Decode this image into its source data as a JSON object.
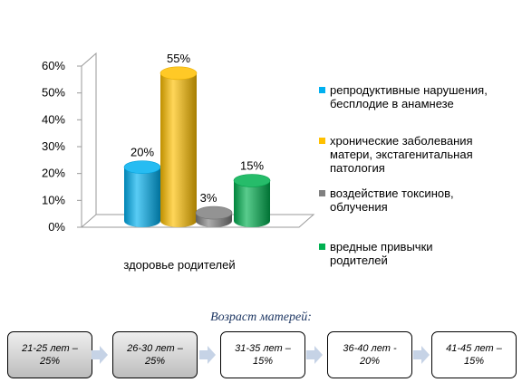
{
  "chart_data": {
    "type": "bar",
    "style": "3d-cylinder",
    "categories": [
      "здоровье родителей"
    ],
    "series": [
      {
        "name": "репродуктивные нарушения, бесплодие в анамнезе",
        "values": [
          20
        ],
        "label": "20%",
        "color": "#00B0F0"
      },
      {
        "name": "хронические заболевания матери, экстагенитальная патология",
        "values": [
          55
        ],
        "label": "55%",
        "color": "#FFC000"
      },
      {
        "name": "воздействие токсинов, облучения",
        "values": [
          3
        ],
        "label": "3%",
        "color": "#808080"
      },
      {
        "name": "вредные привычки родителей",
        "values": [
          15
        ],
        "label": "15%",
        "color": "#00B050"
      }
    ],
    "yticks": [
      "0%",
      "10%",
      "20%",
      "30%",
      "40%",
      "50%",
      "60%"
    ],
    "ylim": [
      0,
      60
    ],
    "xlabel": "здоровье родителей",
    "legend_position": "right",
    "grid": false
  },
  "legend": {
    "items": [
      {
        "label": "репродуктивные нарушения, бесплодие в анамнезе",
        "color": "#00B0F0"
      },
      {
        "label": "хронические заболевания матери, экстагенитальная патология",
        "color": "#FFC000"
      },
      {
        "label": "воздействие токсинов, облучения",
        "color": "#808080"
      },
      {
        "label": "вредные привычки родителей",
        "color": "#00B050"
      }
    ]
  },
  "age": {
    "title": "Возраст матерей:",
    "groups": [
      {
        "label": "21-25 лет – 25%",
        "shaded": true
      },
      {
        "label": "26-30 лет – 25%",
        "shaded": true
      },
      {
        "label": "31-35 лет – 15%",
        "shaded": false
      },
      {
        "label": "36-40 лет - 20%",
        "shaded": false
      },
      {
        "label": "41-45 лет – 15%",
        "shaded": false
      }
    ]
  }
}
